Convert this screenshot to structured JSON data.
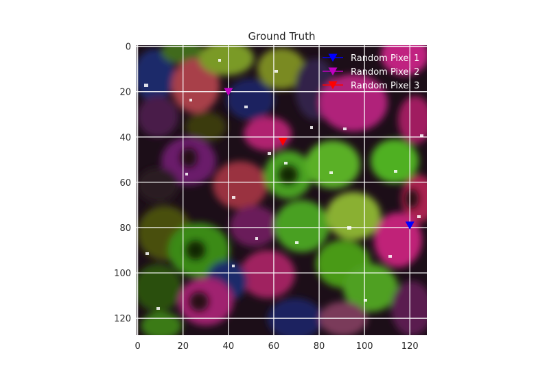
{
  "chart_data": {
    "type": "scatter",
    "title": "Ground Truth",
    "xlabel": "",
    "ylabel": "",
    "background": "image of colorful beads (pink, green, blue, maroon)",
    "xlim": [
      -0.5,
      127.5
    ],
    "ylim": [
      127.5,
      -0.5
    ],
    "x_ticks": [
      0,
      20,
      40,
      60,
      80,
      100,
      120
    ],
    "y_ticks": [
      0,
      20,
      40,
      60,
      80,
      100,
      120
    ],
    "grid": true,
    "grid_color": "#ffffff",
    "legend_position": "upper-right",
    "series": [
      {
        "name": "Random Pixel 1",
        "color": "#0000ff",
        "marker": "triangle-down",
        "x": [
          120
        ],
        "y": [
          79
        ]
      },
      {
        "name": "Random Pixel 2",
        "color": "#bf00bf",
        "marker": "triangle-down",
        "x": [
          40
        ],
        "y": [
          20
        ]
      },
      {
        "name": "Random Pixel 3",
        "color": "#ff0000",
        "marker": "triangle-down",
        "x": [
          64
        ],
        "y": [
          42
        ]
      }
    ]
  }
}
